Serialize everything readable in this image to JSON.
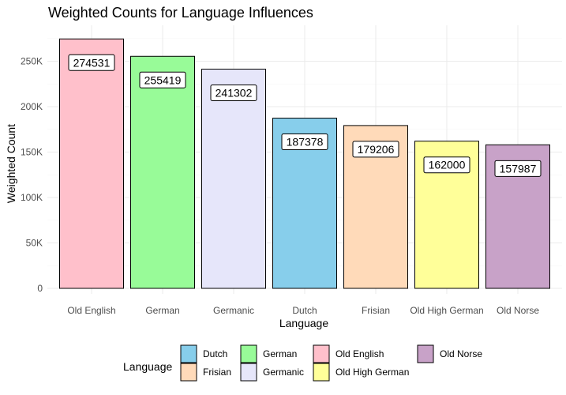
{
  "chart_data": {
    "type": "bar",
    "title": "Weighted Counts for Language Influences",
    "xlabel": "Language",
    "ylabel": "Weighted Count",
    "categories": [
      "Old English",
      "German",
      "Germanic",
      "Dutch",
      "Frisian",
      "Old High German",
      "Old Norse"
    ],
    "values": [
      274531,
      255419,
      241302,
      187378,
      179206,
      162000,
      157987
    ],
    "data_labels": [
      "274531",
      "255419",
      "241302",
      "187378",
      "179206",
      "162000",
      "157987"
    ],
    "colors": [
      "#FFC0CB",
      "#98FB98",
      "#E6E6FA",
      "#87CEEB",
      "#FFDAB9",
      "#FFFF99",
      "#C8A2C8"
    ],
    "ylim": [
      0,
      280000
    ],
    "y_ticks": [
      0,
      50000,
      100000,
      150000,
      200000,
      250000
    ],
    "y_tick_labels": [
      "0",
      "50K",
      "100K",
      "150K",
      "200K",
      "250K"
    ],
    "grid": true,
    "legend": {
      "title": "Language",
      "position": "bottom",
      "columns": [
        [
          {
            "label": "Dutch",
            "color": "#87CEEB"
          },
          {
            "label": "Frisian",
            "color": "#FFDAB9"
          }
        ],
        [
          {
            "label": "German",
            "color": "#98FB98"
          },
          {
            "label": "Germanic",
            "color": "#E6E6FA"
          }
        ],
        [
          {
            "label": "Old English",
            "color": "#FFC0CB"
          },
          {
            "label": "Old High German",
            "color": "#FFFF99"
          }
        ],
        [
          {
            "label": "Old Norse",
            "color": "#C8A2C8"
          }
        ]
      ]
    }
  }
}
